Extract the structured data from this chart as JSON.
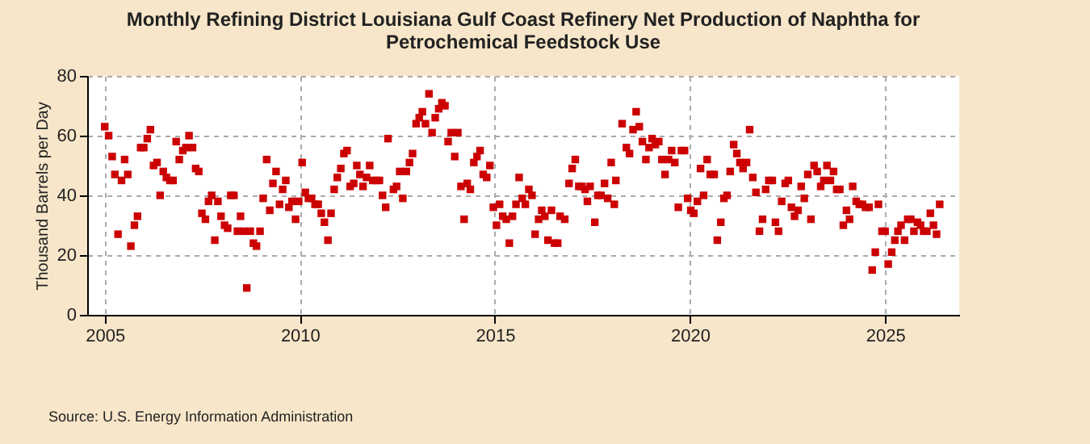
{
  "chart_data": {
    "type": "scatter",
    "title": "Monthly Refining District Louisiana Gulf Coast Refinery Net Production of Naphtha for Petrochemical Feedstock Use",
    "ylabel": "Thousand Barrels per Day",
    "annotations": [
      "Source: U.S. Energy Information Administration"
    ],
    "marker": "square",
    "grid": true,
    "xlim": [
      2004.55,
      2026.9
    ],
    "xticks": [
      2005,
      2010,
      2015,
      2020,
      2025
    ],
    "ylim": [
      0,
      80
    ],
    "yticks": [
      0,
      20,
      40,
      60,
      80
    ],
    "series": [
      {
        "color": "#cc0000",
        "x": [
          2005.0,
          2005.1,
          2005.19,
          2005.26,
          2005.34,
          2005.43,
          2005.51,
          2005.59,
          2005.67,
          2005.76,
          2005.84,
          2005.92,
          2006.0,
          2006.09,
          2006.17,
          2006.25,
          2006.34,
          2006.42,
          2006.5,
          2006.58,
          2006.67,
          2006.75,
          2006.83,
          2006.91,
          2007.0,
          2007.08,
          2007.16,
          2007.25,
          2007.33,
          2007.41,
          2007.49,
          2007.58,
          2007.66,
          2007.74,
          2007.82,
          2007.9,
          2007.98,
          2008.07,
          2008.15,
          2008.23,
          2008.31,
          2008.4,
          2008.48,
          2008.56,
          2008.64,
          2008.73,
          2008.81,
          2008.89,
          2008.98,
          2009.06,
          2009.15,
          2009.23,
          2009.31,
          2009.39,
          2009.48,
          2009.56,
          2009.64,
          2009.72,
          2009.8,
          2009.89,
          2009.97,
          2010.06,
          2010.14,
          2010.22,
          2010.3,
          2010.39,
          2010.47,
          2010.55,
          2010.63,
          2010.72,
          2010.8,
          2010.88,
          2010.96,
          2011.05,
          2011.13,
          2011.21,
          2011.29,
          2011.38,
          2011.46,
          2011.54,
          2011.62,
          2011.71,
          2011.79,
          2011.87,
          2011.96,
          2012.04,
          2012.12,
          2012.2,
          2012.26,
          2012.4,
          2012.48,
          2012.56,
          2012.64,
          2012.73,
          2012.81,
          2012.89,
          2012.98,
          2013.06,
          2013.14,
          2013.22,
          2013.31,
          2013.39,
          2013.47,
          2013.56,
          2013.64,
          2013.72,
          2013.8,
          2013.88,
          2013.97,
          2014.05,
          2014.13,
          2014.21,
          2014.29,
          2014.37,
          2014.46,
          2014.54,
          2014.62,
          2014.7,
          2014.79,
          2014.87,
          2014.96,
          2015.04,
          2015.12,
          2015.2,
          2015.29,
          2015.37,
          2015.45,
          2015.54,
          2015.62,
          2015.7,
          2015.78,
          2015.87,
          2015.95,
          2016.03,
          2016.12,
          2016.2,
          2016.28,
          2016.36,
          2016.45,
          2016.53,
          2016.61,
          2016.67,
          2016.79,
          2016.9,
          2016.98,
          2017.06,
          2017.15,
          2017.23,
          2017.31,
          2017.37,
          2017.44,
          2017.56,
          2017.64,
          2017.72,
          2017.81,
          2017.89,
          2017.98,
          2018.06,
          2018.1,
          2018.26,
          2018.37,
          2018.45,
          2018.54,
          2018.62,
          2018.7,
          2018.78,
          2018.87,
          2018.95,
          2019.03,
          2019.11,
          2019.2,
          2019.28,
          2019.36,
          2019.45,
          2019.53,
          2019.61,
          2019.7,
          2019.78,
          2019.86,
          2019.94,
          2020.02,
          2020.1,
          2020.19,
          2020.27,
          2020.35,
          2020.44,
          2020.52,
          2020.62,
          2020.7,
          2020.79,
          2020.87,
          2020.95,
          2021.03,
          2021.12,
          2021.2,
          2021.28,
          2021.36,
          2021.45,
          2021.53,
          2021.61,
          2021.69,
          2021.78,
          2021.86,
          2021.94,
          2022.02,
          2022.11,
          2022.19,
          2022.27,
          2022.35,
          2022.44,
          2022.52,
          2022.6,
          2022.68,
          2022.77,
          2022.85,
          2022.93,
          2023.02,
          2023.1,
          2023.18,
          2023.26,
          2023.35,
          2023.43,
          2023.51,
          2023.6,
          2023.68,
          2023.76,
          2023.84,
          2023.93,
          2024.01,
          2024.09,
          2024.17,
          2024.26,
          2024.34,
          2024.42,
          2024.5,
          2024.59,
          2024.67,
          2024.75,
          2024.83,
          2024.92,
          2025.0,
          2025.08,
          2025.17,
          2025.25,
          2025.33,
          2025.41,
          2025.5,
          2025.58,
          2025.66,
          2025.74,
          2025.83,
          2025.91,
          2025.99,
          2026.07,
          2026.16,
          2026.24,
          2026.32,
          2026.4
        ],
        "values": [
          63,
          60,
          53,
          47,
          27,
          45,
          52,
          47,
          23,
          30,
          33,
          56,
          56,
          59,
          62,
          50,
          51,
          40,
          48,
          46,
          45,
          45,
          58,
          52,
          55,
          56,
          60,
          56,
          49,
          48,
          34,
          32,
          38,
          40,
          25,
          38,
          33,
          30,
          29,
          40,
          40,
          28,
          33,
          28,
          9,
          28,
          24,
          23,
          28,
          39,
          52,
          35,
          44,
          48,
          37,
          42,
          45,
          36,
          38,
          32,
          38,
          51,
          41,
          39,
          39,
          37,
          37,
          34,
          31,
          25,
          34,
          42,
          46,
          49,
          54,
          55,
          43,
          44,
          50,
          47,
          43,
          46,
          50,
          45,
          45,
          45,
          40,
          36,
          59,
          42,
          43,
          48,
          39,
          48,
          51,
          54,
          64,
          66,
          68,
          64,
          74,
          61,
          66,
          69,
          71,
          70,
          58,
          61,
          53,
          61,
          43,
          32,
          44,
          42,
          51,
          53,
          55,
          47,
          46,
          50,
          36,
          30,
          37,
          33,
          32,
          24,
          33,
          37,
          46,
          39,
          37,
          42,
          40,
          27,
          32,
          35,
          33,
          25,
          35,
          24,
          24,
          33,
          32,
          44,
          49,
          52,
          43,
          43,
          42,
          38,
          43,
          31,
          40,
          40,
          44,
          39,
          51,
          37,
          45,
          64,
          56,
          54,
          62,
          68,
          63,
          58,
          52,
          56,
          59,
          57,
          58,
          52,
          47,
          52,
          55,
          51,
          36,
          55,
          55,
          39,
          35,
          34,
          38,
          49,
          40,
          52,
          47,
          47,
          25,
          31,
          39,
          40,
          48,
          57,
          54,
          51,
          49,
          51,
          62,
          46,
          41,
          28,
          32,
          42,
          45,
          45,
          31,
          28,
          38,
          44,
          45,
          36,
          33,
          35,
          43,
          39,
          47,
          32,
          50,
          48,
          43,
          45,
          50,
          45,
          48,
          42,
          42,
          30,
          35,
          32,
          43,
          38,
          37,
          37,
          36,
          36,
          15,
          21,
          37,
          28,
          28,
          17,
          21,
          25,
          28,
          30,
          25,
          32,
          32,
          28,
          31,
          30,
          28,
          28,
          34,
          30,
          27,
          37
        ]
      }
    ]
  }
}
